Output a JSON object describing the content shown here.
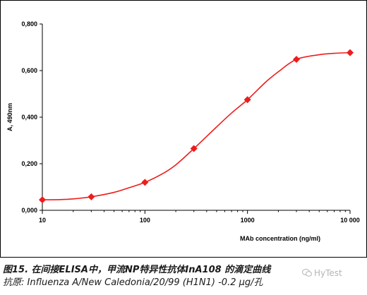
{
  "chart_data": {
    "type": "line",
    "x_scale": "log",
    "xlim": [
      10,
      10000
    ],
    "ylim": [
      0,
      0.8
    ],
    "x_ticks": [
      "10",
      "100",
      "1000",
      "10 000"
    ],
    "x_tick_values": [
      10,
      100,
      1000,
      10000
    ],
    "y_ticks": [
      "0,000",
      "0,200",
      "0,400",
      "0,600",
      "0,800"
    ],
    "y_tick_values": [
      0,
      0.2,
      0.4,
      0.6,
      0.8
    ],
    "xlabel": "MAb concentration (ng/ml)",
    "ylabel": "A, 490nm",
    "grid": false,
    "legend": "none",
    "series_color": "#ee1c1c",
    "x": [
      10,
      30,
      100,
      300,
      1000,
      3000,
      10000
    ],
    "values": [
      0.045,
      0.058,
      0.12,
      0.265,
      0.475,
      0.648,
      0.677
    ],
    "curve_x": [
      10,
      15,
      20,
      30,
      50,
      70,
      100,
      150,
      200,
      300,
      500,
      700,
      1000,
      1500,
      2000,
      3000,
      5000,
      7000,
      10000
    ],
    "curve_y": [
      0.045,
      0.046,
      0.049,
      0.058,
      0.077,
      0.097,
      0.12,
      0.158,
      0.195,
      0.265,
      0.358,
      0.418,
      0.475,
      0.55,
      0.595,
      0.648,
      0.668,
      0.674,
      0.677
    ]
  },
  "caption": {
    "title": "图15. 在间接ELISA中，甲流NP特异性抗体InA108 的滴定曲线",
    "antigen": "抗原: Influenza A/New Caledonia/20/99 (H1N1) -0.2 μg/孔"
  },
  "watermark": {
    "text": "HyTest",
    "icon": "wechat-logo-icon"
  }
}
